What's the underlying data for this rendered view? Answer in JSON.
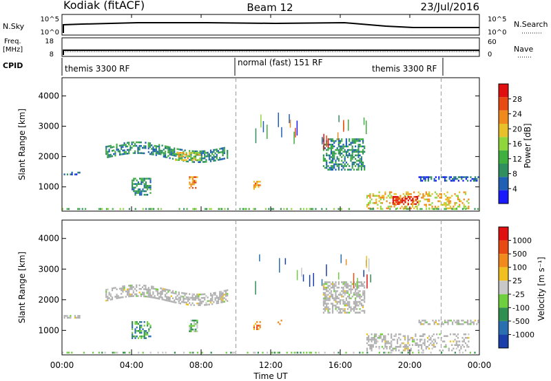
{
  "header": {
    "station": "Kodiak (fitACF)",
    "beam": "Beam 12",
    "date": "23/Jul/2016"
  },
  "top_panels": {
    "nsky_label": "N.Sky",
    "nsearch_label": "N.Search",
    "nsky_ticks": [
      "10^5",
      "10^0"
    ],
    "nsearch_ticks": [
      "10^5",
      "10^0"
    ],
    "freq_label": "Freq.",
    "freq_unit": "[MHz]",
    "freq_ticks": [
      "18",
      "8"
    ],
    "nave_label": "Nave",
    "nave_ticks": [
      "60",
      "0"
    ],
    "cpid_label": "CPID",
    "cpid_segments": [
      "themis 3300 RF",
      "normal (fast) 151 RF",
      "themis 3300 RF"
    ]
  },
  "colors": {
    "power_scale": [
      "#1a1aff",
      "#1f5fb4",
      "#2f8f5f",
      "#3faf3f",
      "#8fd63a",
      "#e8c02a",
      "#f08a1c",
      "#e84a14",
      "#e01010"
    ],
    "velocity_scale": [
      "#1a3fa8",
      "#2a6fb0",
      "#2f8f4f",
      "#6fcf3f",
      "#c8c8c8",
      "#f0c020",
      "#f08a1c",
      "#e84a14",
      "#e01010"
    ],
    "ground_scatter": "#b0b0b0"
  },
  "chart_data": [
    {
      "type": "heatmap",
      "quantity": "Power",
      "ylabel": "Slant Range [km]",
      "xlim": [
        0,
        24
      ],
      "ylim": [
        200,
        4600
      ],
      "yticks": [
        1000,
        2000,
        3000,
        4000
      ],
      "colorbar": {
        "label": "Power [dB]",
        "ticks": [
          "28",
          "24",
          "20",
          "16",
          "12",
          "8",
          "4"
        ],
        "range": [
          0,
          30
        ]
      },
      "regions": [
        {
          "t0": 0.1,
          "t1": 1.1,
          "r0": 1380,
          "r1": 1500,
          "level": 1
        },
        {
          "t0": 2.5,
          "t1": 9.6,
          "r0": 1900,
          "r1": 2350,
          "level": 2,
          "curve": "arc"
        },
        {
          "t0": 6.5,
          "t1": 8.0,
          "r0": 1800,
          "r1": 2150,
          "level": 5
        },
        {
          "t0": 4.0,
          "t1": 5.2,
          "r0": 700,
          "r1": 1300,
          "level": 2
        },
        {
          "t0": 7.3,
          "t1": 7.9,
          "r0": 900,
          "r1": 1350,
          "level": 6
        },
        {
          "t0": 11.0,
          "t1": 11.5,
          "r0": 900,
          "r1": 1200,
          "level": 6
        },
        {
          "t0": 15.0,
          "t1": 17.5,
          "r0": 1500,
          "r1": 2600,
          "level": 2
        },
        {
          "t0": 17.5,
          "t1": 23.5,
          "r0": 250,
          "r1": 850,
          "level": 5
        },
        {
          "t0": 19.0,
          "t1": 20.5,
          "r0": 350,
          "r1": 700,
          "level": 8
        },
        {
          "t0": 20.5,
          "t1": 24.0,
          "r0": 1150,
          "r1": 1350,
          "level": 1
        },
        {
          "t0": 0.0,
          "t1": 24.0,
          "r0": 200,
          "r1": 300,
          "level": 3
        }
      ]
    },
    {
      "type": "heatmap",
      "quantity": "Velocity",
      "ylabel": "Slant Range [km]",
      "xlabel": "Time UT",
      "xlim": [
        0,
        24
      ],
      "ylim": [
        200,
        4600
      ],
      "yticks": [
        1000,
        2000,
        3000,
        4000
      ],
      "xticks": [
        "00:00",
        "04:00",
        "08:00",
        "12:00",
        "16:00",
        "20:00",
        "00:00"
      ],
      "colorbar": {
        "label": "Velocity [m s⁻¹]",
        "ticks": [
          "1000",
          "500",
          "100",
          "25",
          "-25",
          "-100",
          "-500",
          "-1000"
        ],
        "range": [
          -1000,
          1000
        ]
      },
      "regions": [
        {
          "t0": 0.1,
          "t1": 1.1,
          "r0": 1350,
          "r1": 1500,
          "level": 4
        },
        {
          "t0": 2.5,
          "t1": 9.6,
          "r0": 1900,
          "r1": 2350,
          "level": 4,
          "curve": "arc"
        },
        {
          "t0": 4.0,
          "t1": 5.2,
          "r0": 700,
          "r1": 1300,
          "level": 2
        },
        {
          "t0": 7.3,
          "t1": 7.9,
          "r0": 900,
          "r1": 1350,
          "level": 3
        },
        {
          "t0": 11.0,
          "t1": 11.5,
          "r0": 950,
          "r1": 1300,
          "level": 6
        },
        {
          "t0": 12.4,
          "t1": 12.7,
          "r0": 1150,
          "r1": 1350,
          "level": 7
        },
        {
          "t0": 15.0,
          "t1": 17.5,
          "r0": 1500,
          "r1": 2600,
          "level": 4
        },
        {
          "t0": 17.5,
          "t1": 23.5,
          "r0": 300,
          "r1": 900,
          "level": 4
        },
        {
          "t0": 20.5,
          "t1": 24.0,
          "r0": 1150,
          "r1": 1350,
          "level": 4
        },
        {
          "t0": 0.0,
          "t1": 24.0,
          "r0": 200,
          "r1": 300,
          "level": 3
        }
      ]
    }
  ]
}
